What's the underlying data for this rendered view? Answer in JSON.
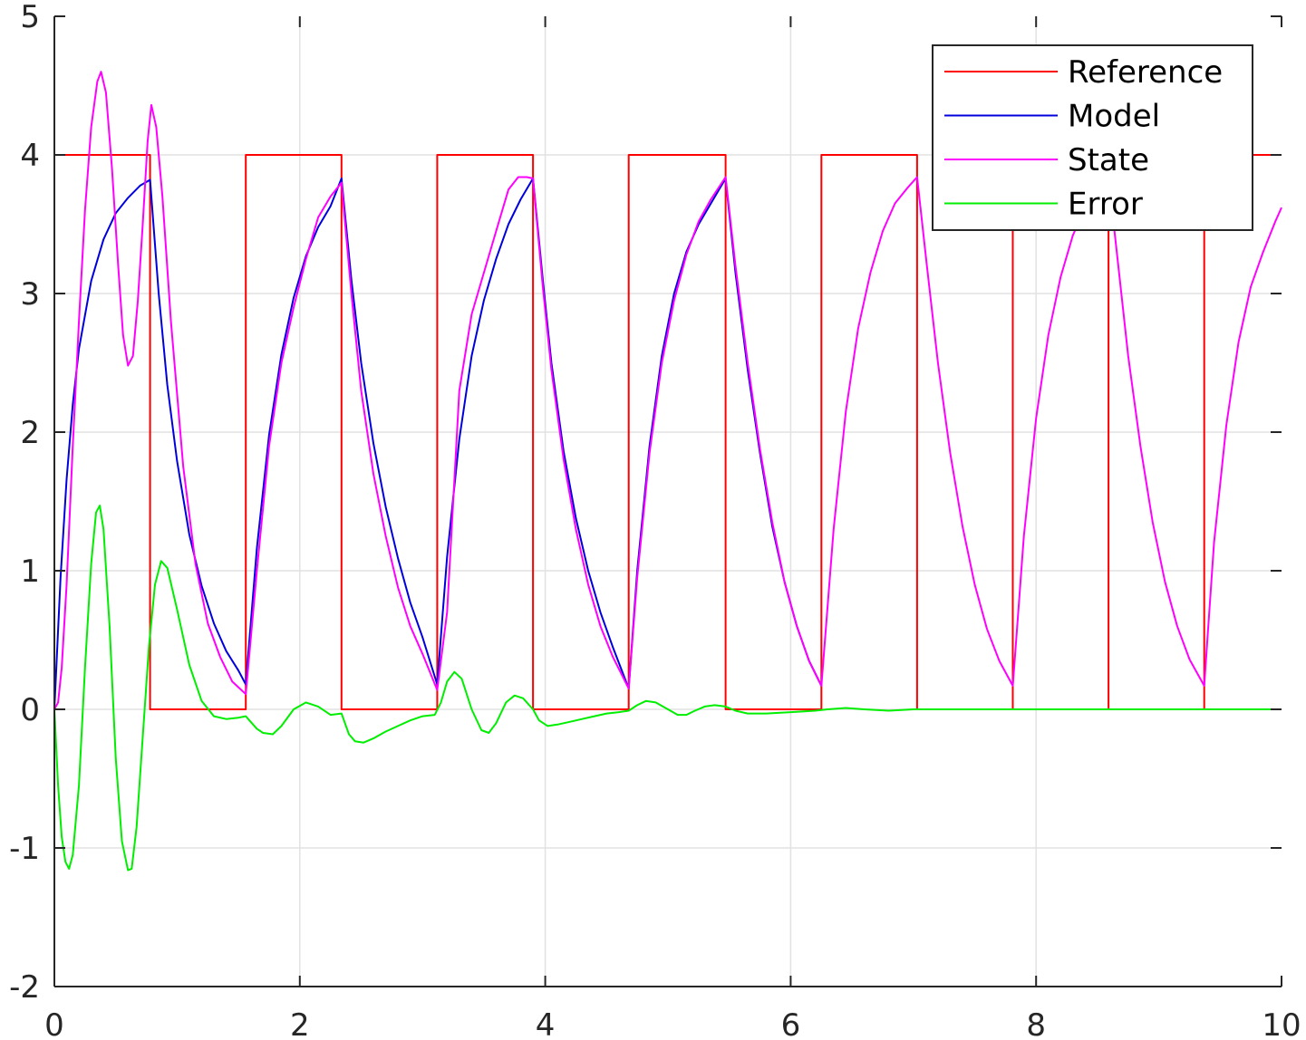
{
  "chart_data": {
    "type": "line",
    "title": "",
    "xlabel": "",
    "ylabel": "",
    "xlim": [
      0,
      10
    ],
    "ylim": [
      -2,
      5
    ],
    "xticks": [
      0,
      2,
      4,
      6,
      8,
      10
    ],
    "yticks": [
      -2,
      -1,
      0,
      1,
      2,
      3,
      4,
      5
    ],
    "grid": true,
    "legend_position": "top-right",
    "series": [
      {
        "name": "Reference",
        "color": "#ff0000",
        "points": [
          [
            0,
            4
          ],
          [
            0.78,
            4
          ],
          [
            0.78,
            0
          ],
          [
            1.56,
            0
          ],
          [
            1.56,
            4
          ],
          [
            2.34,
            4
          ],
          [
            2.34,
            0
          ],
          [
            3.12,
            0
          ],
          [
            3.12,
            4
          ],
          [
            3.9,
            4
          ],
          [
            3.9,
            0
          ],
          [
            4.68,
            0
          ],
          [
            4.68,
            4
          ],
          [
            5.47,
            4
          ],
          [
            5.47,
            0
          ],
          [
            6.25,
            0
          ],
          [
            6.25,
            4
          ],
          [
            7.03,
            4
          ],
          [
            7.03,
            0
          ],
          [
            7.81,
            0
          ],
          [
            7.81,
            4
          ],
          [
            8.59,
            4
          ],
          [
            8.59,
            0
          ],
          [
            9.37,
            0
          ],
          [
            9.37,
            4
          ],
          [
            10,
            4
          ]
        ]
      },
      {
        "name": "Model",
        "color": "#0000dd",
        "points": [
          [
            0,
            0
          ],
          [
            0.05,
            0.95
          ],
          [
            0.1,
            1.66
          ],
          [
            0.15,
            2.2
          ],
          [
            0.2,
            2.6
          ],
          [
            0.3,
            3.09
          ],
          [
            0.4,
            3.39
          ],
          [
            0.5,
            3.58
          ],
          [
            0.6,
            3.69
          ],
          [
            0.7,
            3.78
          ],
          [
            0.78,
            3.82
          ],
          [
            0.85,
            3.0
          ],
          [
            0.92,
            2.34
          ],
          [
            1.0,
            1.79
          ],
          [
            1.1,
            1.26
          ],
          [
            1.2,
            0.89
          ],
          [
            1.3,
            0.62
          ],
          [
            1.4,
            0.42
          ],
          [
            1.5,
            0.28
          ],
          [
            1.56,
            0.18
          ],
          [
            1.65,
            1.16
          ],
          [
            1.75,
            1.98
          ],
          [
            1.85,
            2.56
          ],
          [
            1.95,
            2.97
          ],
          [
            2.05,
            3.27
          ],
          [
            2.15,
            3.48
          ],
          [
            2.25,
            3.63
          ],
          [
            2.34,
            3.83
          ],
          [
            2.42,
            3.1
          ],
          [
            2.5,
            2.5
          ],
          [
            2.6,
            1.92
          ],
          [
            2.7,
            1.46
          ],
          [
            2.8,
            1.09
          ],
          [
            2.9,
            0.77
          ],
          [
            3.0,
            0.52
          ],
          [
            3.12,
            0.18
          ],
          [
            3.2,
            1.1
          ],
          [
            3.3,
            1.95
          ],
          [
            3.4,
            2.55
          ],
          [
            3.5,
            2.95
          ],
          [
            3.6,
            3.25
          ],
          [
            3.7,
            3.5
          ],
          [
            3.8,
            3.68
          ],
          [
            3.9,
            3.83
          ],
          [
            3.98,
            3.1
          ],
          [
            4.05,
            2.5
          ],
          [
            4.15,
            1.86
          ],
          [
            4.25,
            1.38
          ],
          [
            4.35,
            1.0
          ],
          [
            4.45,
            0.7
          ],
          [
            4.55,
            0.45
          ],
          [
            4.68,
            0.15
          ],
          [
            4.75,
            1.0
          ],
          [
            4.85,
            1.9
          ],
          [
            4.95,
            2.55
          ],
          [
            5.05,
            3.0
          ],
          [
            5.15,
            3.3
          ],
          [
            5.25,
            3.5
          ],
          [
            5.35,
            3.65
          ],
          [
            5.47,
            3.83
          ],
          [
            5.55,
            3.15
          ],
          [
            5.65,
            2.45
          ],
          [
            5.75,
            1.85
          ],
          [
            5.85,
            1.32
          ],
          [
            5.95,
            0.92
          ],
          [
            6.05,
            0.6
          ],
          [
            6.15,
            0.35
          ],
          [
            6.25,
            0.17
          ]
        ]
      },
      {
        "name": "State",
        "color": "#ff00ff",
        "points": [
          [
            0,
            0
          ],
          [
            0.03,
            0.05
          ],
          [
            0.06,
            0.3
          ],
          [
            0.1,
            0.9
          ],
          [
            0.15,
            1.9
          ],
          [
            0.2,
            2.8
          ],
          [
            0.25,
            3.6
          ],
          [
            0.3,
            4.2
          ],
          [
            0.35,
            4.53
          ],
          [
            0.38,
            4.6
          ],
          [
            0.42,
            4.45
          ],
          [
            0.47,
            3.9
          ],
          [
            0.52,
            3.2
          ],
          [
            0.56,
            2.7
          ],
          [
            0.6,
            2.48
          ],
          [
            0.64,
            2.55
          ],
          [
            0.68,
            2.95
          ],
          [
            0.72,
            3.5
          ],
          [
            0.76,
            4.1
          ],
          [
            0.79,
            4.36
          ],
          [
            0.83,
            4.2
          ],
          [
            0.88,
            3.7
          ],
          [
            0.95,
            2.8
          ],
          [
            1.05,
            1.75
          ],
          [
            1.15,
            1.05
          ],
          [
            1.25,
            0.62
          ],
          [
            1.35,
            0.38
          ],
          [
            1.45,
            0.2
          ],
          [
            1.56,
            0.11
          ],
          [
            1.65,
            1.0
          ],
          [
            1.75,
            1.9
          ],
          [
            1.85,
            2.5
          ],
          [
            1.95,
            2.9
          ],
          [
            2.05,
            3.25
          ],
          [
            2.15,
            3.55
          ],
          [
            2.25,
            3.7
          ],
          [
            2.34,
            3.8
          ],
          [
            2.42,
            3.0
          ],
          [
            2.5,
            2.3
          ],
          [
            2.6,
            1.7
          ],
          [
            2.7,
            1.25
          ],
          [
            2.8,
            0.88
          ],
          [
            2.9,
            0.6
          ],
          [
            3.0,
            0.4
          ],
          [
            3.12,
            0.14
          ],
          [
            3.2,
            0.7
          ],
          [
            3.3,
            2.3
          ],
          [
            3.4,
            2.85
          ],
          [
            3.5,
            3.15
          ],
          [
            3.6,
            3.45
          ],
          [
            3.7,
            3.75
          ],
          [
            3.78,
            3.84
          ],
          [
            3.85,
            3.84
          ],
          [
            3.9,
            3.83
          ],
          [
            3.98,
            3.05
          ],
          [
            4.05,
            2.45
          ],
          [
            4.15,
            1.8
          ],
          [
            4.25,
            1.3
          ],
          [
            4.35,
            0.9
          ],
          [
            4.45,
            0.6
          ],
          [
            4.55,
            0.38
          ],
          [
            4.68,
            0.15
          ],
          [
            4.75,
            0.95
          ],
          [
            4.85,
            1.85
          ],
          [
            4.95,
            2.5
          ],
          [
            5.05,
            2.95
          ],
          [
            5.15,
            3.28
          ],
          [
            5.25,
            3.52
          ],
          [
            5.35,
            3.68
          ],
          [
            5.47,
            3.84
          ],
          [
            5.55,
            3.2
          ],
          [
            5.65,
            2.5
          ],
          [
            5.75,
            1.88
          ],
          [
            5.85,
            1.35
          ],
          [
            5.95,
            0.92
          ],
          [
            6.05,
            0.6
          ],
          [
            6.15,
            0.35
          ],
          [
            6.25,
            0.17
          ],
          [
            6.35,
            1.3
          ],
          [
            6.45,
            2.15
          ],
          [
            6.55,
            2.75
          ],
          [
            6.65,
            3.15
          ],
          [
            6.75,
            3.45
          ],
          [
            6.85,
            3.65
          ],
          [
            6.95,
            3.76
          ],
          [
            7.03,
            3.84
          ],
          [
            7.11,
            3.2
          ],
          [
            7.2,
            2.5
          ],
          [
            7.3,
            1.85
          ],
          [
            7.4,
            1.32
          ],
          [
            7.5,
            0.9
          ],
          [
            7.6,
            0.58
          ],
          [
            7.7,
            0.35
          ],
          [
            7.81,
            0.17
          ],
          [
            7.9,
            1.25
          ],
          [
            8.0,
            2.1
          ],
          [
            8.1,
            2.7
          ],
          [
            8.2,
            3.12
          ],
          [
            8.3,
            3.42
          ],
          [
            8.4,
            3.62
          ],
          [
            8.5,
            3.74
          ],
          [
            8.59,
            3.84
          ],
          [
            8.67,
            3.2
          ],
          [
            8.75,
            2.55
          ],
          [
            8.85,
            1.9
          ],
          [
            8.95,
            1.35
          ],
          [
            9.05,
            0.92
          ],
          [
            9.15,
            0.6
          ],
          [
            9.25,
            0.36
          ],
          [
            9.37,
            0.17
          ],
          [
            9.45,
            1.2
          ],
          [
            9.55,
            2.05
          ],
          [
            9.65,
            2.65
          ],
          [
            9.75,
            3.05
          ],
          [
            9.85,
            3.3
          ],
          [
            9.95,
            3.52
          ],
          [
            10.0,
            3.62
          ]
        ]
      },
      {
        "name": "Error",
        "color": "#00ee00",
        "points": [
          [
            0,
            0
          ],
          [
            0.03,
            -0.55
          ],
          [
            0.06,
            -0.92
          ],
          [
            0.09,
            -1.1
          ],
          [
            0.12,
            -1.15
          ],
          [
            0.15,
            -1.05
          ],
          [
            0.2,
            -0.55
          ],
          [
            0.25,
            0.3
          ],
          [
            0.3,
            1.05
          ],
          [
            0.34,
            1.42
          ],
          [
            0.37,
            1.47
          ],
          [
            0.4,
            1.3
          ],
          [
            0.45,
            0.6
          ],
          [
            0.5,
            -0.35
          ],
          [
            0.55,
            -0.95
          ],
          [
            0.6,
            -1.16
          ],
          [
            0.63,
            -1.15
          ],
          [
            0.67,
            -0.85
          ],
          [
            0.72,
            -0.2
          ],
          [
            0.77,
            0.45
          ],
          [
            0.82,
            0.9
          ],
          [
            0.87,
            1.07
          ],
          [
            0.92,
            1.02
          ],
          [
            1.0,
            0.72
          ],
          [
            1.1,
            0.32
          ],
          [
            1.2,
            0.06
          ],
          [
            1.3,
            -0.05
          ],
          [
            1.4,
            -0.07
          ],
          [
            1.5,
            -0.06
          ],
          [
            1.56,
            -0.05
          ],
          [
            1.6,
            -0.09
          ],
          [
            1.65,
            -0.14
          ],
          [
            1.7,
            -0.17
          ],
          [
            1.78,
            -0.18
          ],
          [
            1.85,
            -0.12
          ],
          [
            1.95,
            0.0
          ],
          [
            2.05,
            0.05
          ],
          [
            2.15,
            0.02
          ],
          [
            2.25,
            -0.04
          ],
          [
            2.34,
            -0.03
          ],
          [
            2.4,
            -0.18
          ],
          [
            2.45,
            -0.23
          ],
          [
            2.52,
            -0.24
          ],
          [
            2.6,
            -0.21
          ],
          [
            2.7,
            -0.16
          ],
          [
            2.8,
            -0.12
          ],
          [
            2.9,
            -0.08
          ],
          [
            3.0,
            -0.05
          ],
          [
            3.1,
            -0.04
          ],
          [
            3.15,
            0.05
          ],
          [
            3.2,
            0.2
          ],
          [
            3.26,
            0.27
          ],
          [
            3.32,
            0.22
          ],
          [
            3.4,
            0.0
          ],
          [
            3.48,
            -0.15
          ],
          [
            3.54,
            -0.17
          ],
          [
            3.6,
            -0.1
          ],
          [
            3.68,
            0.05
          ],
          [
            3.75,
            0.1
          ],
          [
            3.82,
            0.08
          ],
          [
            3.9,
            0.0
          ],
          [
            3.95,
            -0.08
          ],
          [
            4.02,
            -0.12
          ],
          [
            4.1,
            -0.11
          ],
          [
            4.2,
            -0.09
          ],
          [
            4.3,
            -0.07
          ],
          [
            4.4,
            -0.05
          ],
          [
            4.5,
            -0.03
          ],
          [
            4.6,
            -0.02
          ],
          [
            4.68,
            -0.01
          ],
          [
            4.75,
            0.03
          ],
          [
            4.82,
            0.06
          ],
          [
            4.9,
            0.05
          ],
          [
            5.0,
            0.0
          ],
          [
            5.08,
            -0.04
          ],
          [
            5.15,
            -0.04
          ],
          [
            5.22,
            -0.01
          ],
          [
            5.3,
            0.02
          ],
          [
            5.38,
            0.03
          ],
          [
            5.47,
            0.02
          ],
          [
            5.55,
            -0.01
          ],
          [
            5.65,
            -0.03
          ],
          [
            5.8,
            -0.03
          ],
          [
            6.0,
            -0.02
          ],
          [
            6.2,
            -0.01
          ],
          [
            6.3,
            0.0
          ],
          [
            6.45,
            0.01
          ],
          [
            6.6,
            0.0
          ],
          [
            6.8,
            -0.01
          ],
          [
            7.0,
            0.0
          ],
          [
            7.2,
            0.0
          ],
          [
            7.5,
            0.0
          ],
          [
            8.0,
            0.0
          ],
          [
            9.0,
            0.0
          ],
          [
            10.0,
            0.0
          ]
        ]
      }
    ]
  }
}
